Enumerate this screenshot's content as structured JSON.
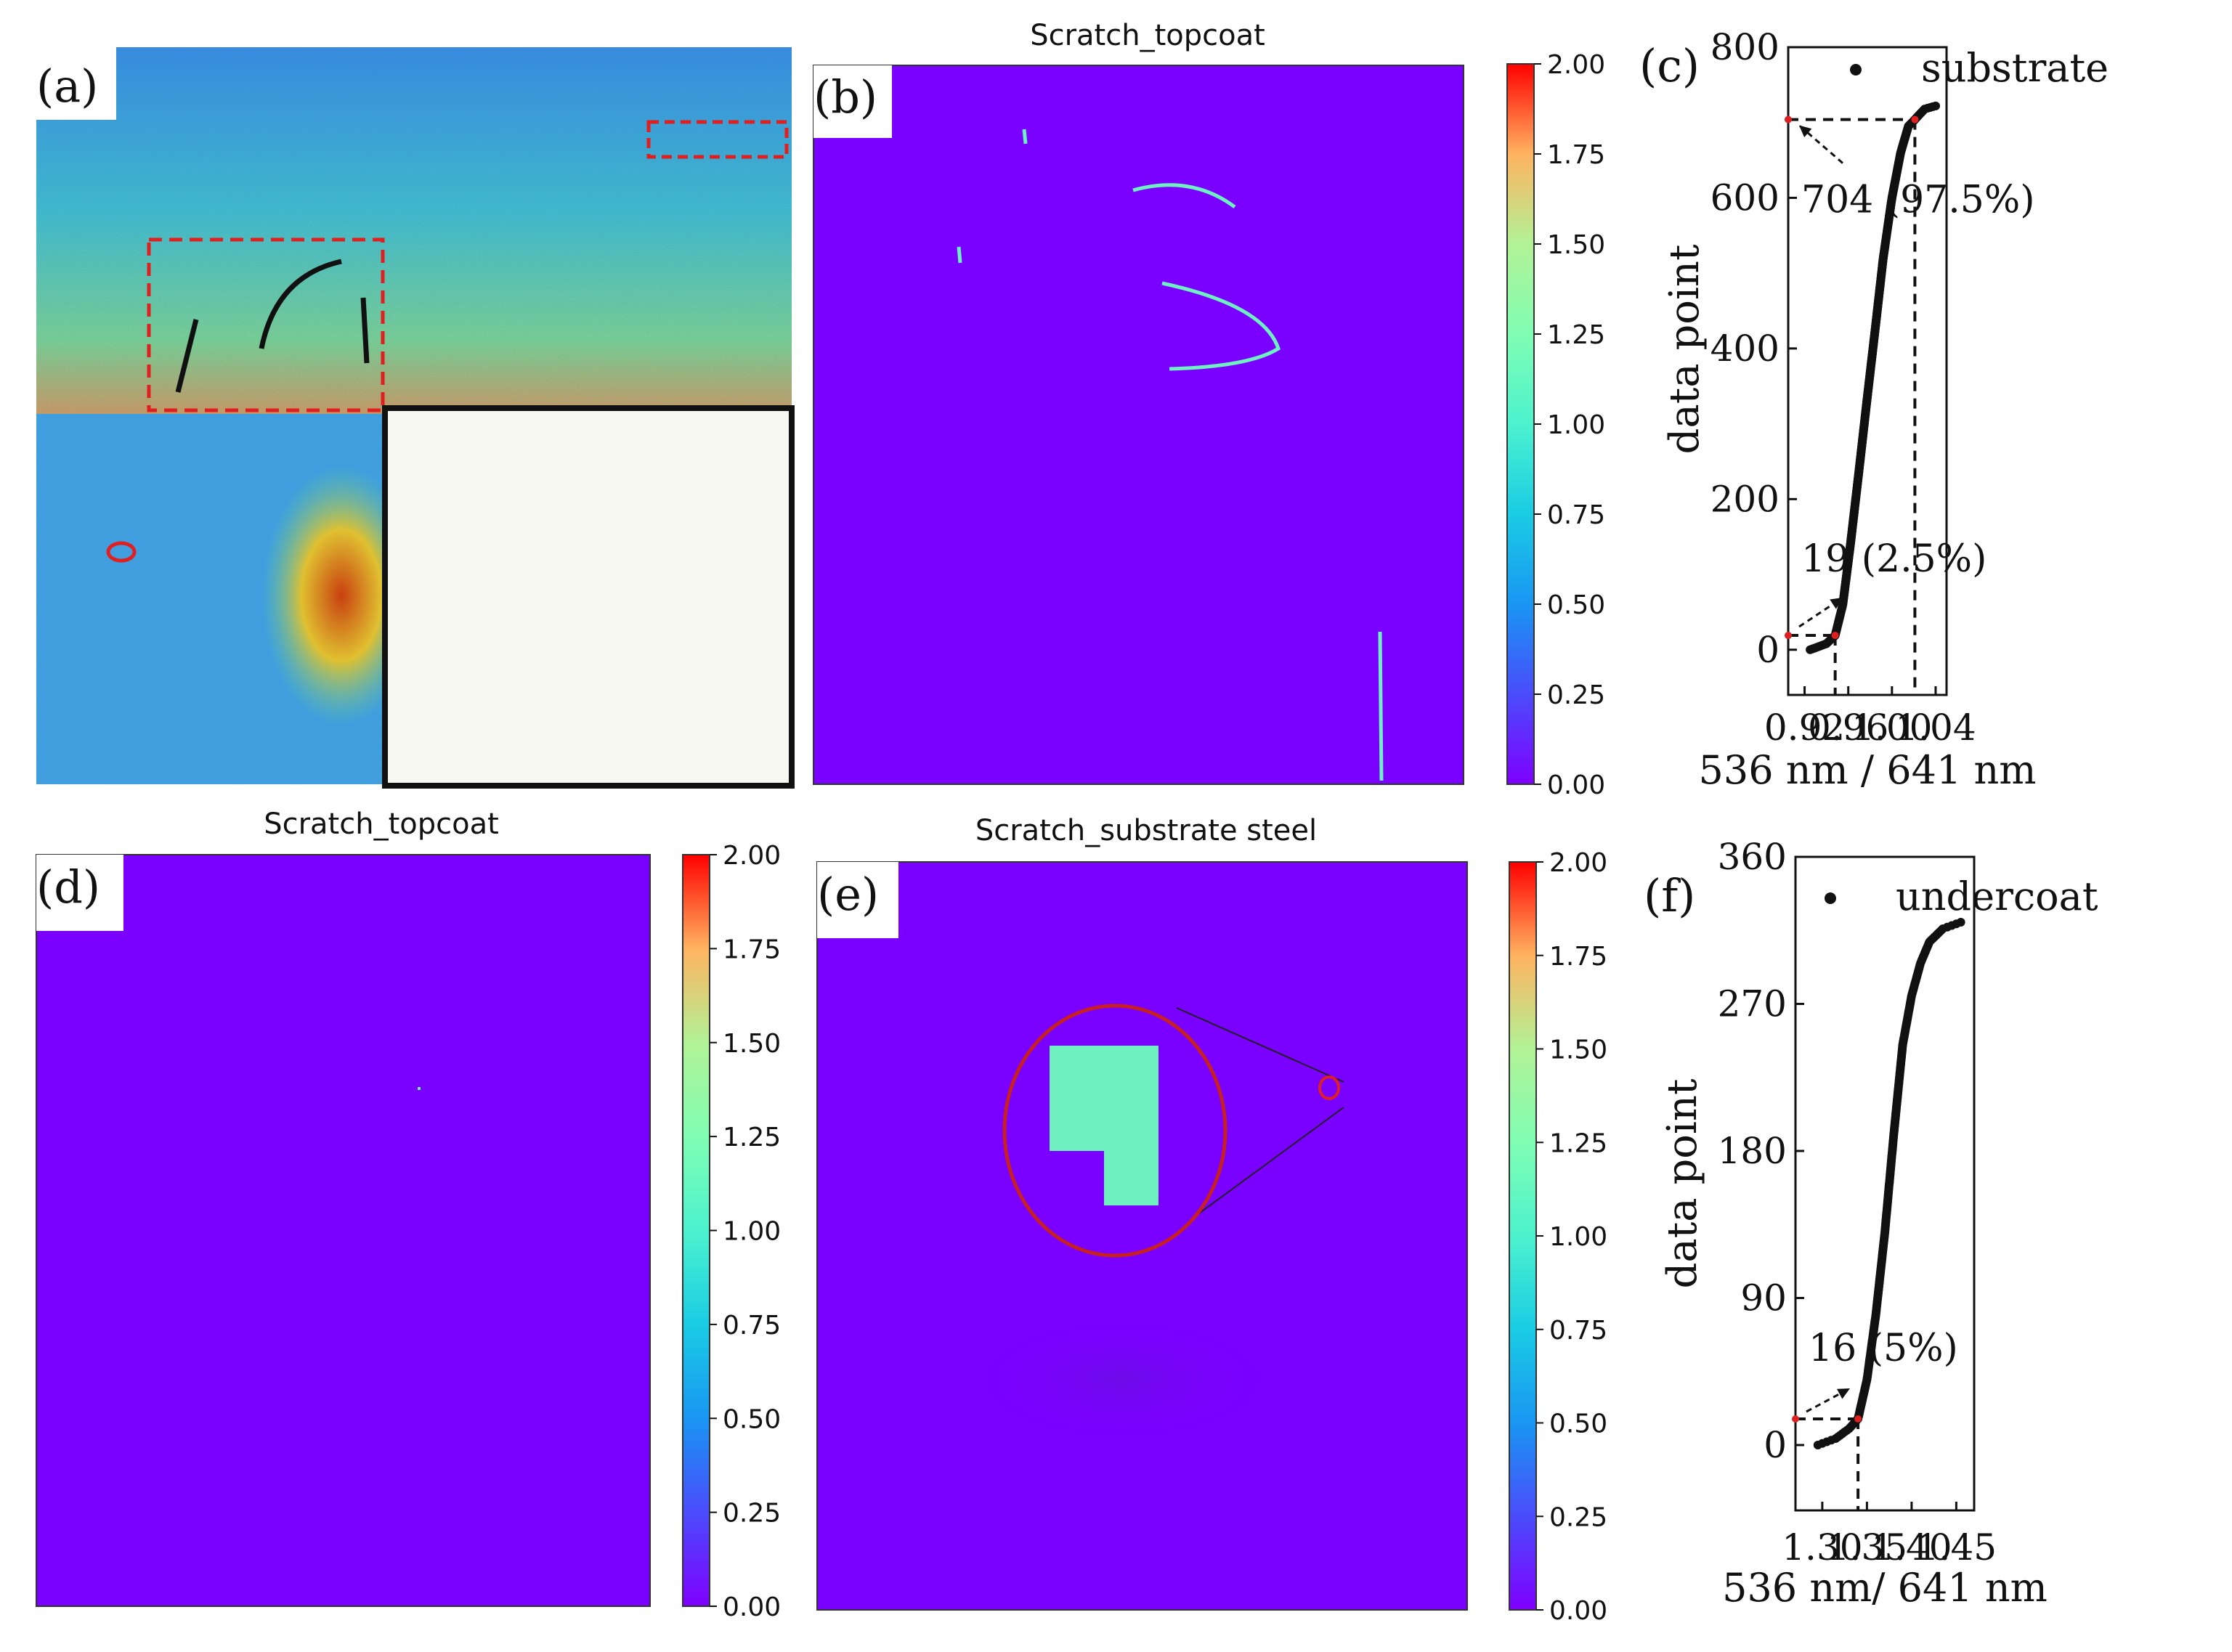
{
  "panels": {
    "a": {
      "label": "(a)"
    },
    "b": {
      "label": "(b)",
      "title": "Scratch_topcoat"
    },
    "c": {
      "label": "(c)"
    },
    "d": {
      "label": "(d)",
      "title": "Scratch_topcoat"
    },
    "e": {
      "label": "(e)",
      "title": "Scratch_substrate steel"
    },
    "f": {
      "label": "(f)"
    }
  },
  "colorbar": {
    "ticks": [
      "2.00",
      "1.75",
      "1.50",
      "1.25",
      "1.00",
      "0.75",
      "0.50",
      "0.25",
      "0.00"
    ],
    "range": [
      0,
      2
    ]
  },
  "colors": {
    "map_background": "#7a00ff",
    "highlight": "#6ef0c0",
    "annotation_red": "#e02020"
  },
  "chart_data": [
    {
      "panel": "c",
      "type": "scatter",
      "legend": "substrate",
      "xlabel": "536 nm / 641 nm",
      "ylabel": "data point",
      "xlim": [
        0.905,
        1.05
      ],
      "ylim": [
        -60,
        800
      ],
      "xticks": [
        0.92,
        0.96,
        1.0,
        1.04
      ],
      "xtick_labels": [
        "0.92",
        "0.96",
        "1.00",
        "1.04"
      ],
      "yticks": [
        0,
        200,
        400,
        600,
        800
      ],
      "ytick_labels": [
        "0",
        "200",
        "400",
        "600",
        "800"
      ],
      "n_points": 722,
      "curve": {
        "x": [
          0.925,
          0.94,
          0.948,
          0.955,
          0.962,
          0.97,
          0.977,
          0.985,
          0.992,
          1.0,
          1.008,
          1.015,
          1.021,
          1.03,
          1.04
        ],
        "y": [
          0,
          8,
          19,
          60,
          140,
          240,
          330,
          430,
          520,
          600,
          660,
          695,
          704,
          718,
          722
        ]
      },
      "annotations": [
        {
          "text": "704 (97.5%)",
          "x": 1.021,
          "y": 704
        },
        {
          "text": "19 (2.5%)",
          "x": 0.948,
          "y": 19
        }
      ]
    },
    {
      "panel": "f",
      "type": "scatter",
      "legend": "undercoat",
      "xlabel": "536 nm/ 641 nm",
      "ylabel": "data point",
      "xlim": [
        1.27,
        1.47
      ],
      "ylim": [
        -40,
        360
      ],
      "xticks": [
        1.3,
        1.35,
        1.4,
        1.45
      ],
      "xtick_labels": [
        "1.30",
        "1.35",
        "1.40",
        "1.45"
      ],
      "yticks": [
        0,
        90,
        180,
        270,
        360
      ],
      "ytick_labels": [
        "0",
        "90",
        "180",
        "270",
        "360"
      ],
      "n_points": 320,
      "curve": {
        "x": [
          1.295,
          1.315,
          1.33,
          1.34,
          1.35,
          1.36,
          1.37,
          1.38,
          1.39,
          1.4,
          1.41,
          1.42,
          1.435,
          1.455
        ],
        "y": [
          0,
          4,
          10,
          16,
          40,
          80,
          130,
          190,
          245,
          275,
          295,
          308,
          316,
          320
        ]
      },
      "annotations": [
        {
          "text": "16 (5%)",
          "x": 1.34,
          "y": 16
        }
      ]
    }
  ]
}
